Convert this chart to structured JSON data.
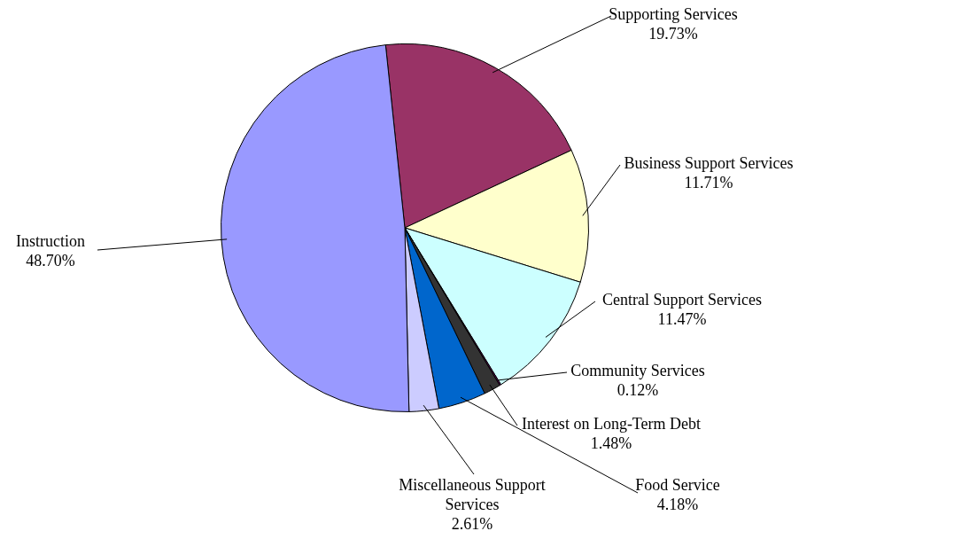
{
  "chart_data": {
    "type": "pie",
    "categories": [
      "Supporting Services",
      "Business Support Services",
      "Central Support Services",
      "Community Services",
      "Interest on Long-Term Debt",
      "Food Service",
      "Miscellaneous Support Services",
      "Instruction"
    ],
    "values": [
      19.73,
      11.71,
      11.47,
      0.12,
      1.48,
      4.18,
      2.61,
      48.7
    ],
    "value_labels": [
      "19.73%",
      "11.71%",
      "11.47%",
      "0.12%",
      "1.48%",
      "4.18%",
      "2.61%",
      "48.70%"
    ],
    "colors": [
      "#993366",
      "#ffffcc",
      "#ccffff",
      "#660066",
      "#333333",
      "#0066cc",
      "#ccccff",
      "#9999ff"
    ],
    "legend": false
  }
}
